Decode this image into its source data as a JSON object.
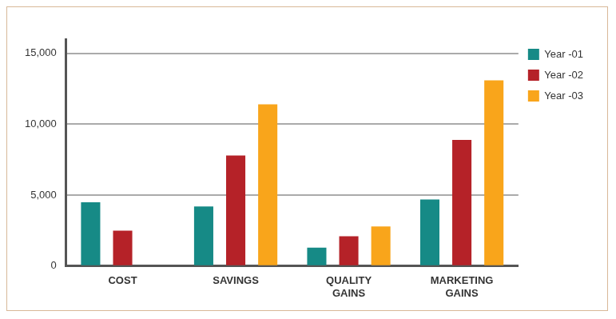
{
  "chart_data": {
    "type": "bar",
    "categories": [
      "COST",
      "SAVINGS",
      "QUALITY GAINS",
      "MARKETING GAINS"
    ],
    "series": [
      {
        "name": "Year -01",
        "color": "#168a86",
        "values": [
          4500,
          4200,
          1300,
          4700
        ]
      },
      {
        "name": "Year -02",
        "color": "#b52228",
        "values": [
          2500,
          7800,
          2100,
          8900
        ]
      },
      {
        "name": "Year -03",
        "color": "#f9a51b",
        "values": [
          null,
          11400,
          2800,
          13100
        ]
      }
    ],
    "ylim": [
      0,
      16000
    ],
    "yticks": [
      0,
      {
        "value": 5000,
        "label": "5,000"
      },
      {
        "value": 10000,
        "label": "10,000"
      },
      {
        "value": 15000,
        "label": "15,000"
      }
    ],
    "grid": true,
    "legend": "right"
  }
}
